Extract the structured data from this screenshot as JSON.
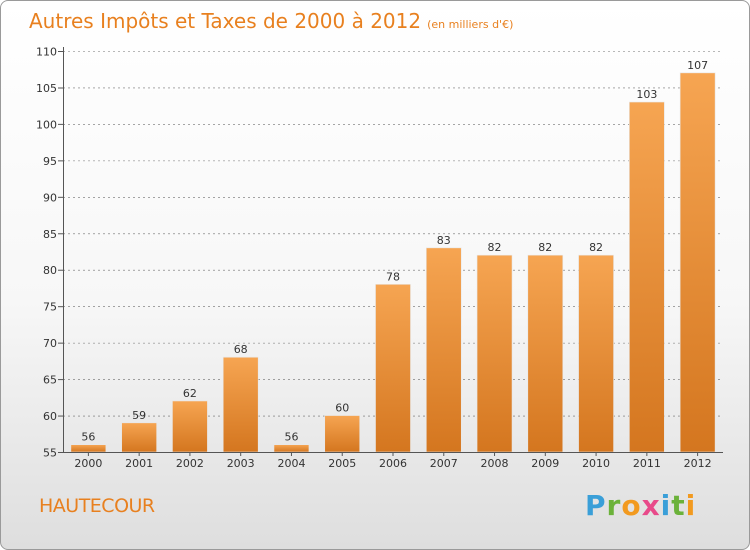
{
  "header": {
    "title": "Autres Impôts et Taxes de 2000 à 2012",
    "unit": "(en milliers d'€)"
  },
  "footer": {
    "commune": "HAUTECOUR",
    "logo_letters": [
      {
        "ch": "P",
        "color": "#3a9fd8"
      },
      {
        "ch": "r",
        "color": "#6bb23a"
      },
      {
        "ch": "o",
        "color": "#f29a1f"
      },
      {
        "ch": "x",
        "color": "#e84a8a"
      },
      {
        "ch": "i",
        "color": "#3a9fd8"
      },
      {
        "ch": "t",
        "color": "#6bb23a"
      },
      {
        "ch": "i",
        "color": "#f29a1f"
      }
    ]
  },
  "colors": {
    "bar_top": "#f6a552",
    "bar_bottom": "#d4761f",
    "accent": "#e8801f",
    "grid": "#000000"
  },
  "chart_data": {
    "type": "bar",
    "categories": [
      "2000",
      "2001",
      "2002",
      "2003",
      "2004",
      "2005",
      "2006",
      "2007",
      "2008",
      "2009",
      "2010",
      "2011",
      "2012"
    ],
    "values": [
      56,
      59,
      62,
      68,
      56,
      60,
      78,
      83,
      82,
      82,
      82,
      103,
      107
    ],
    "ylim": [
      55,
      110
    ],
    "yticks": [
      55,
      60,
      65,
      70,
      75,
      80,
      85,
      90,
      95,
      100,
      105,
      110
    ],
    "grid": "horizontal dashed",
    "data_labels": true
  }
}
